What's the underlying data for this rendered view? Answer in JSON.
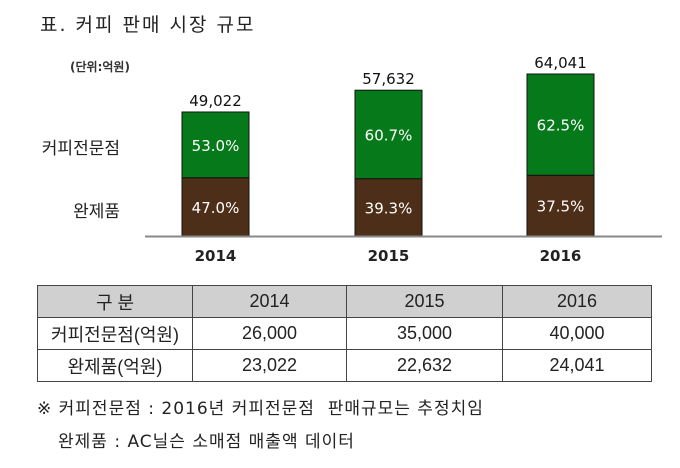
{
  "title": "표. 커피 판매 시장 규모",
  "chart_data": {
    "type": "bar",
    "stacked": true,
    "unit_label": "(단위:억원)",
    "categories": [
      "2014",
      "2015",
      "2016"
    ],
    "totals": [
      "49,022",
      "57,632",
      "64,041"
    ],
    "total_values": [
      49022,
      57632,
      64041
    ],
    "series": [
      {
        "name": "완제품",
        "color": "#4d2e18",
        "shares": [
          47.0,
          39.3,
          37.5
        ],
        "labels": [
          "47.0%",
          "39.3%",
          "37.5%"
        ]
      },
      {
        "name": "커피전문점",
        "color": "#067a1a",
        "shares": [
          53.0,
          60.7,
          62.5
        ],
        "labels": [
          "53.0%",
          "60.7%",
          "62.5%"
        ]
      }
    ],
    "ylim": [
      0,
      64041
    ]
  },
  "table": {
    "header": [
      "구  분",
      "2014",
      "2015",
      "2016"
    ],
    "rows": [
      [
        "커피전문점(억원)",
        "26,000",
        "35,000",
        "40,000"
      ],
      [
        "완제품(억원)",
        "23,022",
        "22,632",
        "24,041"
      ]
    ]
  },
  "notes": [
    "※ 커피전문점 : 2016년 커피전문점  판매규모는 추정치임",
    "완제품 : AC닐슨 소매점 매출액 데이터"
  ]
}
